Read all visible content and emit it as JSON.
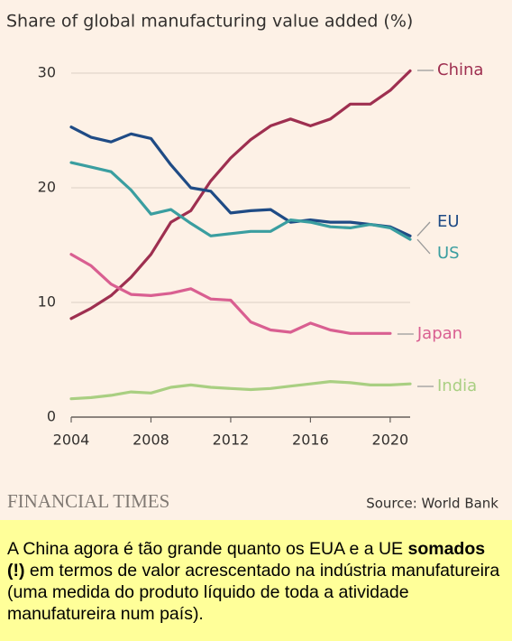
{
  "chart_data": {
    "type": "line",
    "title": "Share of global manufacturing value added (%)",
    "x": [
      2004,
      2005,
      2006,
      2007,
      2008,
      2009,
      2010,
      2011,
      2012,
      2013,
      2014,
      2015,
      2016,
      2017,
      2018,
      2019,
      2020,
      2021
    ],
    "series": [
      {
        "name": "China",
        "color": "#9e2f50",
        "values": [
          8.6,
          9.5,
          10.6,
          12.2,
          14.2,
          17.0,
          18.0,
          20.6,
          22.6,
          24.2,
          25.4,
          26.0,
          25.4,
          26.0,
          27.3,
          27.3,
          28.5,
          30.2
        ]
      },
      {
        "name": "EU",
        "color": "#1f4b85",
        "values": [
          25.3,
          24.4,
          24.0,
          24.7,
          24.3,
          22.0,
          20.0,
          19.7,
          17.8,
          18.0,
          18.1,
          17.0,
          17.2,
          17.0,
          17.0,
          16.8,
          16.6,
          15.8
        ]
      },
      {
        "name": "US",
        "color": "#3a9ea0",
        "values": [
          22.2,
          21.8,
          21.4,
          19.8,
          17.7,
          18.1,
          16.9,
          15.8,
          16.0,
          16.2,
          16.2,
          17.2,
          17.0,
          16.6,
          16.5,
          16.8,
          16.5,
          15.5
        ]
      },
      {
        "name": "Japan",
        "color": "#d95f91",
        "values": [
          14.2,
          13.2,
          11.6,
          10.7,
          10.6,
          10.8,
          11.2,
          10.3,
          10.2,
          8.3,
          7.6,
          7.4,
          8.2,
          7.6,
          7.3,
          7.3,
          7.3,
          null
        ]
      },
      {
        "name": "India",
        "color": "#a9cf82",
        "values": [
          1.6,
          1.7,
          1.9,
          2.2,
          2.1,
          2.6,
          2.8,
          2.6,
          2.5,
          2.4,
          2.5,
          2.7,
          2.9,
          3.1,
          3.0,
          2.8,
          2.8,
          2.9
        ]
      }
    ],
    "xlim": [
      2004,
      2021
    ],
    "xticks": [
      2004,
      2008,
      2012,
      2016,
      2020
    ],
    "ylim": [
      0,
      30
    ],
    "yticks": [
      0,
      10,
      20,
      30
    ],
    "grid": true
  },
  "footer": {
    "brand": "FINANCIAL TIMES",
    "source": "Source: World Bank"
  },
  "caption": {
    "before": "A China agora é tão grande quanto os EUA e a UE ",
    "bold": "somados (!)",
    "after": " em termos de valor acrescentado na indústria manufatureira (uma medida do produto líquido de toda a atividade manufatureira num país)."
  }
}
